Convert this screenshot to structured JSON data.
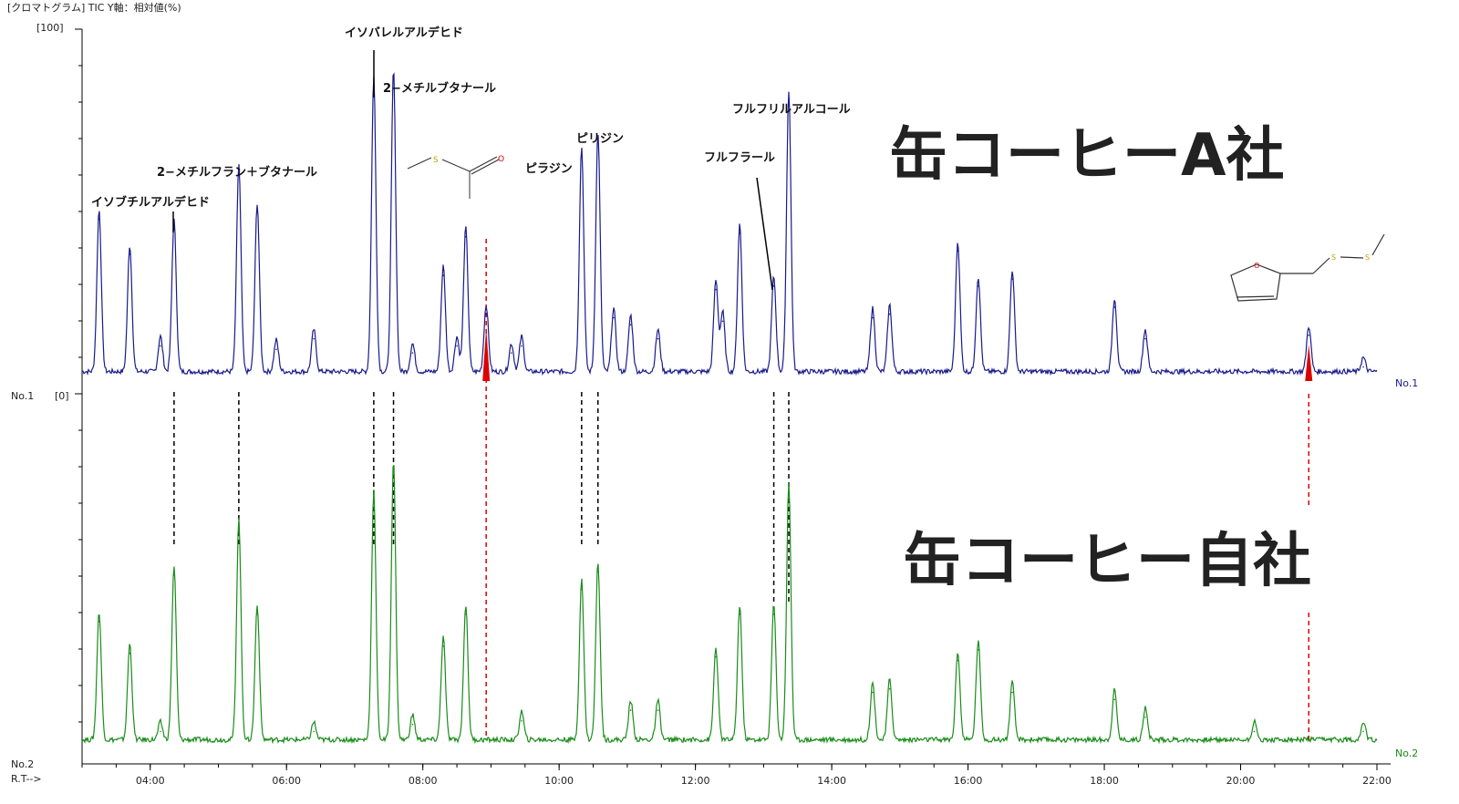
{
  "header": "[クロマトグラム]  TIC  Y軸：相対値(%)",
  "y_top_label": "[100]",
  "y_zero_label": "[0]",
  "trace1_label": "No.1",
  "trace2_label": "No.2",
  "xaxis_label": "R.T-->",
  "title_a": "缶コーヒーA社",
  "title_self": "缶コーヒー自社",
  "colors": {
    "trace1": "#1a1a8c",
    "trace2": "#1a8c1a",
    "highlight": "#dd0000",
    "axis": "#000000"
  },
  "chart_data": [
    {
      "type": "line",
      "name": "No.1",
      "x_ticks": [
        "04:00",
        "06:00",
        "08:00",
        "10:00",
        "12:00",
        "14:00",
        "16:00",
        "18:00",
        "20:00",
        "22:00"
      ],
      "xlim": [
        "03:00",
        "22:00"
      ],
      "ylim": [
        0,
        100
      ],
      "peaks": [
        {
          "rt": 3.25,
          "v": 46
        },
        {
          "rt": 3.7,
          "v": 36
        },
        {
          "rt": 4.15,
          "v": 10
        },
        {
          "rt": 4.35,
          "v": 43
        },
        {
          "rt": 5.3,
          "v": 59
        },
        {
          "rt": 5.57,
          "v": 48
        },
        {
          "rt": 5.85,
          "v": 9
        },
        {
          "rt": 6.4,
          "v": 12
        },
        {
          "rt": 7.28,
          "v": 84
        },
        {
          "rt": 7.57,
          "v": 86
        },
        {
          "rt": 7.85,
          "v": 8
        },
        {
          "rt": 8.3,
          "v": 30
        },
        {
          "rt": 8.5,
          "v": 10
        },
        {
          "rt": 8.63,
          "v": 41
        },
        {
          "rt": 8.93,
          "v": 19
        },
        {
          "rt": 9.3,
          "v": 8
        },
        {
          "rt": 9.45,
          "v": 10
        },
        {
          "rt": 10.33,
          "v": 64
        },
        {
          "rt": 10.57,
          "v": 68
        },
        {
          "rt": 10.8,
          "v": 18
        },
        {
          "rt": 11.05,
          "v": 16
        },
        {
          "rt": 11.45,
          "v": 12
        },
        {
          "rt": 12.3,
          "v": 26
        },
        {
          "rt": 12.4,
          "v": 17
        },
        {
          "rt": 12.65,
          "v": 42
        },
        {
          "rt": 13.15,
          "v": 27
        },
        {
          "rt": 13.37,
          "v": 80
        },
        {
          "rt": 14.6,
          "v": 18
        },
        {
          "rt": 14.85,
          "v": 19
        },
        {
          "rt": 15.85,
          "v": 37
        },
        {
          "rt": 16.15,
          "v": 27
        },
        {
          "rt": 16.65,
          "v": 29
        },
        {
          "rt": 18.15,
          "v": 21
        },
        {
          "rt": 18.6,
          "v": 12
        },
        {
          "rt": 21.0,
          "v": 13
        },
        {
          "rt": 21.8,
          "v": 4
        }
      ],
      "highlight_rt": [
        8.93,
        21.0
      ]
    },
    {
      "type": "line",
      "name": "No.2",
      "x_ticks": [
        "04:00",
        "06:00",
        "08:00",
        "10:00",
        "12:00",
        "14:00",
        "16:00",
        "18:00",
        "20:00",
        "22:00"
      ],
      "xlim": [
        "03:00",
        "22:00"
      ],
      "ylim": [
        0,
        100
      ],
      "peaks": [
        {
          "rt": 3.25,
          "v": 36
        },
        {
          "rt": 3.7,
          "v": 27
        },
        {
          "rt": 4.15,
          "v": 5
        },
        {
          "rt": 4.35,
          "v": 49
        },
        {
          "rt": 5.3,
          "v": 62
        },
        {
          "rt": 5.57,
          "v": 38
        },
        {
          "rt": 6.4,
          "v": 5
        },
        {
          "rt": 7.28,
          "v": 70
        },
        {
          "rt": 7.57,
          "v": 79
        },
        {
          "rt": 7.85,
          "v": 7
        },
        {
          "rt": 8.3,
          "v": 29
        },
        {
          "rt": 8.63,
          "v": 38
        },
        {
          "rt": 9.45,
          "v": 8
        },
        {
          "rt": 10.33,
          "v": 45
        },
        {
          "rt": 10.57,
          "v": 50
        },
        {
          "rt": 11.05,
          "v": 11
        },
        {
          "rt": 11.45,
          "v": 11
        },
        {
          "rt": 12.3,
          "v": 26
        },
        {
          "rt": 12.65,
          "v": 38
        },
        {
          "rt": 13.15,
          "v": 38
        },
        {
          "rt": 13.37,
          "v": 72
        },
        {
          "rt": 14.6,
          "v": 16
        },
        {
          "rt": 14.85,
          "v": 17
        },
        {
          "rt": 15.85,
          "v": 25
        },
        {
          "rt": 16.15,
          "v": 28
        },
        {
          "rt": 16.65,
          "v": 16
        },
        {
          "rt": 18.15,
          "v": 14
        },
        {
          "rt": 18.6,
          "v": 9
        },
        {
          "rt": 20.2,
          "v": 5
        },
        {
          "rt": 21.8,
          "v": 5
        }
      ]
    }
  ],
  "annotations": [
    {
      "text": "イソブチルアルデヒド",
      "rt": 4.35
    },
    {
      "text": "2−メチルフラン＋ブタナール",
      "rt": 5.3
    },
    {
      "text": "イソバレルアルデヒド",
      "rt": 7.28
    },
    {
      "text": "2−メチルブタナール",
      "rt": 7.57
    },
    {
      "text": "ピラジン",
      "rt": 10.33
    },
    {
      "text": "ピリジン",
      "rt": 10.57
    },
    {
      "text": "フルフラール",
      "rt": 13.15
    },
    {
      "text": "フルフリルアルコール",
      "rt": 13.37
    }
  ],
  "molecule_labels": [
    "S",
    "O",
    "S"
  ]
}
